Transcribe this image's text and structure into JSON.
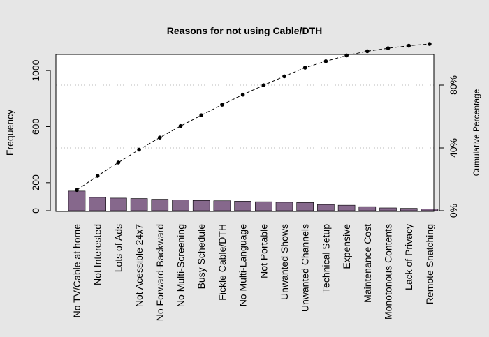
{
  "chart_data": {
    "type": "bar",
    "title": "Reasons for not using Cable/DTH",
    "ylabel": "Frequency",
    "y2label": "Cumulative Percentage",
    "ylim": [
      0,
      1120
    ],
    "yticks": [
      0,
      200,
      600,
      1000
    ],
    "y2ticks": [
      "0%",
      "40%",
      "80%"
    ],
    "y2_reference_lines": [
      40,
      80
    ],
    "categories": [
      "No TV/Cable at home",
      "Not Interested",
      "Lots of Ads",
      "Not Acessible 24x7",
      "No Forward-Backward",
      "No Multi-Screening",
      "Busy Schedule",
      "Fickle Cable/DTH",
      "No Multi-Language",
      "Not Portable",
      "Unwanted Shows",
      "Unwanted Channels",
      "Technical Setup",
      "Expensive",
      "Maintenance Cost",
      "Monotonous Contents",
      "Lack of Privacy",
      "Remote Snatching"
    ],
    "series": [
      {
        "values": [
          140,
          95,
          90,
          87,
          82,
          77,
          73,
          71,
          68,
          64,
          60,
          58,
          44,
          39,
          29,
          20,
          17,
          12
        ]
      },
      {
        "type": "line",
        "values": [
          13.2,
          22.2,
          30.7,
          38.9,
          46.6,
          53.9,
          60.8,
          67.5,
          73.9,
          79.9,
          85.6,
          91.1,
          95.2,
          98.9,
          101.6,
          103.5,
          105.1,
          106.2
        ]
      }
    ],
    "colors": {
      "bar": "#86688c",
      "line": "#000000",
      "background": "#e6e6e6",
      "panel": "#ffffff",
      "reference_line": "#bbbbbb"
    },
    "grid": false,
    "legend": "none"
  }
}
